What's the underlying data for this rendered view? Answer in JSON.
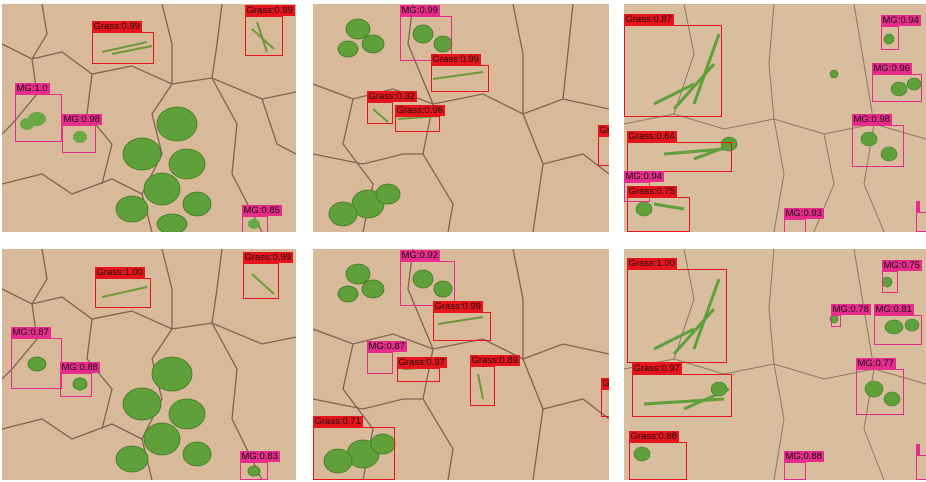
{
  "colors": {
    "grass_box": "#e8141b",
    "mg_box": "#e82c8c",
    "soil": "#d8b99a",
    "crack": "#5e4a3a",
    "leaf": "#5fa03a"
  },
  "panels": [
    {
      "detections": [
        {
          "cls": "grass",
          "label": "Grass:0.99"
        },
        {
          "cls": "grass",
          "label": "Grass:0.99"
        },
        {
          "cls": "mg",
          "label": "MG:1.0"
        },
        {
          "cls": "mg",
          "label": "MG:0.98"
        },
        {
          "cls": "mg",
          "label": "MG:0.85"
        }
      ]
    },
    {
      "detections": [
        {
          "cls": "mg",
          "label": "MG:0.99"
        },
        {
          "cls": "grass",
          "label": "Grass:0.99"
        },
        {
          "cls": "grass",
          "label": "Grass:0.32"
        },
        {
          "cls": "grass",
          "label": "Grass:0.96"
        },
        {
          "cls": "grass",
          "label": "Gr"
        }
      ]
    },
    {
      "detections": [
        {
          "cls": "grass",
          "label": "Grass:0.87"
        },
        {
          "cls": "mg",
          "label": "MG:0.94"
        },
        {
          "cls": "mg",
          "label": "MG:0.96"
        },
        {
          "cls": "mg",
          "label": "MG:0.98"
        },
        {
          "cls": "grass",
          "label": "Grass:0.64"
        },
        {
          "cls": "mg",
          "label": "MG:0.94"
        },
        {
          "cls": "grass",
          "label": "Grass:0.75"
        },
        {
          "cls": "mg",
          "label": "MG:0.93"
        },
        {
          "cls": "mg",
          "label": ""
        }
      ]
    },
    {
      "detections": [
        {
          "cls": "grass",
          "label": "Grass:1.00"
        },
        {
          "cls": "grass",
          "label": "Grass:0.99"
        },
        {
          "cls": "mg",
          "label": "MG:0.87"
        },
        {
          "cls": "mg",
          "label": "MG:0.88"
        },
        {
          "cls": "mg",
          "label": "MG:0.83"
        }
      ]
    },
    {
      "detections": [
        {
          "cls": "mg",
          "label": "MG:0.92"
        },
        {
          "cls": "grass",
          "label": "Grass:0.99"
        },
        {
          "cls": "mg",
          "label": "MG:0.87"
        },
        {
          "cls": "grass",
          "label": "Grass:0.97"
        },
        {
          "cls": "grass",
          "label": "Grass:0.89"
        },
        {
          "cls": "grass",
          "label": "Grass:0.71"
        },
        {
          "cls": "grass",
          "label": "G"
        }
      ]
    },
    {
      "detections": [
        {
          "cls": "grass",
          "label": "Grass:1.00"
        },
        {
          "cls": "mg",
          "label": "MG:0.75"
        },
        {
          "cls": "mg",
          "label": "MG:0.78"
        },
        {
          "cls": "mg",
          "label": "MG:0.81"
        },
        {
          "cls": "grass",
          "label": "Grass:0.97"
        },
        {
          "cls": "mg",
          "label": "MG:0.77"
        },
        {
          "cls": "grass",
          "label": "Grass:0.88"
        },
        {
          "cls": "mg",
          "label": "MG:0.88"
        },
        {
          "cls": "mg",
          "label": ""
        }
      ]
    }
  ]
}
